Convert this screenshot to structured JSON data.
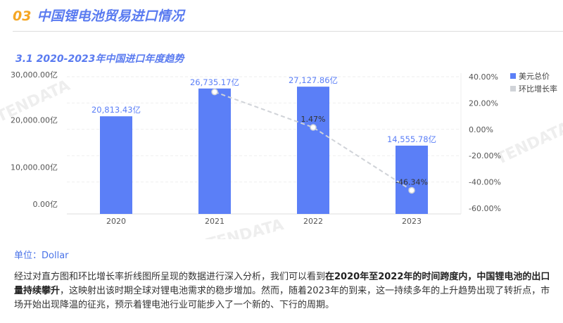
{
  "header": {
    "number": "03",
    "title": "中国锂电池贸易进口情况"
  },
  "section": {
    "subtitle": "3.1 2020-2023年中国进口年度趋势"
  },
  "chart_data": {
    "type": "bar+line",
    "categories": [
      "2020",
      "2021",
      "2022",
      "2023"
    ],
    "series": [
      {
        "name": "美元总价",
        "type": "bar",
        "values": [
          20813.43,
          26735.17,
          27127.86,
          14555.78
        ],
        "labels": [
          "20,813.43亿",
          "26,735.17亿",
          "27,127.86亿",
          "14,555.78亿"
        ],
        "color": "#5b7ff7"
      },
      {
        "name": "环比增长率",
        "type": "line",
        "values": [
          null,
          28.45,
          1.47,
          -46.34
        ],
        "labels": [
          "",
          "",
          "1.47%",
          "-46.34%"
        ],
        "color": "#d0d3d8"
      }
    ],
    "left_axis": {
      "range": [
        0,
        30000
      ],
      "ticks": [
        "0.00亿",
        "10,000.00亿",
        "20,000.00亿",
        "30,000.00亿"
      ]
    },
    "right_axis": {
      "range": [
        -60,
        40
      ],
      "ticks": [
        "40.00%",
        "20.00%",
        "0.00%",
        "-20.00%",
        "-40.00%",
        "-60.00%"
      ]
    },
    "grid": true,
    "legend": "right",
    "watermark": "TENDATA"
  },
  "footer": {
    "unit": "单位：Dollar",
    "p1": "经过对直方图和环比增长率折线图所呈现的数据进行深入分析，我们可以看到",
    "p_bold": "在2020年至2022年的时间跨度内，中国锂电池的出口量持续攀升",
    "p2": "，这映射出该时期全球对锂电池需求的稳步增加。然而，随着2023年的到来，这一持续多年的上升趋势出现了转折点，市场开始出现降温的征兆，预示着锂电池行业可能步入了一个新的、下行的周期。"
  }
}
